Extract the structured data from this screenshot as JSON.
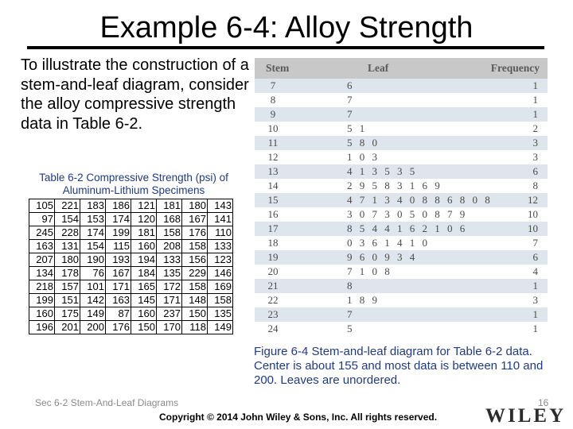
{
  "title": "Example 6-4: Alloy Strength",
  "intro": "To illustrate the construction of a stem-and-leaf diagram, consider the alloy compressive strength data in Table 6-2.",
  "table_6_2": {
    "caption": "Table 6-2  Compressive Strength (psi) of Aluminum-Lithium Specimens",
    "rows": [
      [
        "105",
        "221",
        "183",
        "186",
        "121",
        "181",
        "180",
        "143"
      ],
      [
        "97",
        "154",
        "153",
        "174",
        "120",
        "168",
        "167",
        "141"
      ],
      [
        "245",
        "228",
        "174",
        "199",
        "181",
        "158",
        "176",
        "110"
      ],
      [
        "163",
        "131",
        "154",
        "115",
        "160",
        "208",
        "158",
        "133"
      ],
      [
        "207",
        "180",
        "190",
        "193",
        "194",
        "133",
        "156",
        "123"
      ],
      [
        "134",
        "178",
        "76",
        "167",
        "184",
        "135",
        "229",
        "146"
      ],
      [
        "218",
        "157",
        "101",
        "171",
        "165",
        "172",
        "158",
        "169"
      ],
      [
        "199",
        "151",
        "142",
        "163",
        "145",
        "171",
        "148",
        "158"
      ],
      [
        "160",
        "175",
        "149",
        "87",
        "160",
        "237",
        "150",
        "135"
      ],
      [
        "196",
        "201",
        "200",
        "176",
        "150",
        "170",
        "118",
        "149"
      ]
    ]
  },
  "stem_leaf": {
    "headers": {
      "stem": "Stem",
      "leaf": "Leaf",
      "frequency": "Frequency"
    },
    "rows": [
      {
        "stem": "7",
        "leaf": "6",
        "freq": "1"
      },
      {
        "stem": "8",
        "leaf": "7",
        "freq": "1"
      },
      {
        "stem": "9",
        "leaf": "7",
        "freq": "1"
      },
      {
        "stem": "10",
        "leaf": "5 1",
        "freq": "2"
      },
      {
        "stem": "11",
        "leaf": "5 8 0",
        "freq": "3"
      },
      {
        "stem": "12",
        "leaf": "1 0 3",
        "freq": "3"
      },
      {
        "stem": "13",
        "leaf": "4 1 3 5 3 5",
        "freq": "6"
      },
      {
        "stem": "14",
        "leaf": "2 9 5 8 3 1 6 9",
        "freq": "8"
      },
      {
        "stem": "15",
        "leaf": "4 7 1 3 4 0 8 8 6 8 0 8",
        "freq": "12"
      },
      {
        "stem": "16",
        "leaf": "3 0 7 3 0 5 0 8 7 9",
        "freq": "10"
      },
      {
        "stem": "17",
        "leaf": "8 5 4 4 1 6 2 1 0 6",
        "freq": "10"
      },
      {
        "stem": "18",
        "leaf": "0 3 6 1 4 1 0",
        "freq": "7"
      },
      {
        "stem": "19",
        "leaf": "9 6 0 9 3 4",
        "freq": "6"
      },
      {
        "stem": "20",
        "leaf": "7 1 0 8",
        "freq": "4"
      },
      {
        "stem": "21",
        "leaf": "8",
        "freq": "1"
      },
      {
        "stem": "22",
        "leaf": "1 8 9",
        "freq": "3"
      },
      {
        "stem": "23",
        "leaf": "7",
        "freq": "1"
      },
      {
        "stem": "24",
        "leaf": "5",
        "freq": "1"
      }
    ]
  },
  "figure_caption": "Figure 6-4  Stem-and-leaf diagram for Table 6-2 data.  Center is about 155 and most data is between 110 and 200.  Leaves are unordered.",
  "footer": {
    "section": "Sec 6-2 Stem-And-Leaf Diagrams",
    "page_number": "16",
    "copyright": "Copyright © 2014 John Wiley & Sons, Inc. All rights reserved.",
    "logo": "WILEY"
  }
}
